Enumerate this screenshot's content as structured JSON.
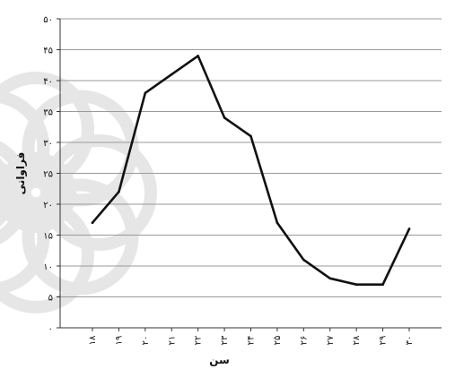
{
  "chart_data": {
    "type": "line",
    "title": "",
    "xlabel": "سن",
    "ylabel": "فراوانی",
    "x": [
      18,
      19,
      20,
      21,
      22,
      23,
      24,
      25,
      26,
      27,
      28,
      29,
      30
    ],
    "x_tick_labels": [
      "۱۸",
      "۱۹",
      "۲۰",
      "۲۱",
      "۲۲",
      "۲۳",
      "۲۴",
      "۲۵",
      "۲۶",
      "۲۷",
      "۲۸",
      "۲۹",
      "۳۰"
    ],
    "series": [
      {
        "values": [
          17,
          22,
          38,
          41,
          44,
          34,
          31,
          17,
          11,
          8,
          7,
          7,
          16
        ]
      }
    ],
    "ylim": [
      0,
      50
    ],
    "y_ticks": [
      0,
      5,
      10,
      15,
      20,
      25,
      30,
      35,
      40,
      45,
      50
    ],
    "y_tick_labels": [
      "۰",
      "۵",
      "۱۰",
      "۱۵",
      "۲۰",
      "۲۵",
      "۳۰",
      "۳۵",
      "۴۰",
      "۴۵",
      "۵۰"
    ],
    "grid": true,
    "line_color": "#111111",
    "grid_color": "#9a9a9a",
    "watermark_color": "#e6e6e6"
  }
}
